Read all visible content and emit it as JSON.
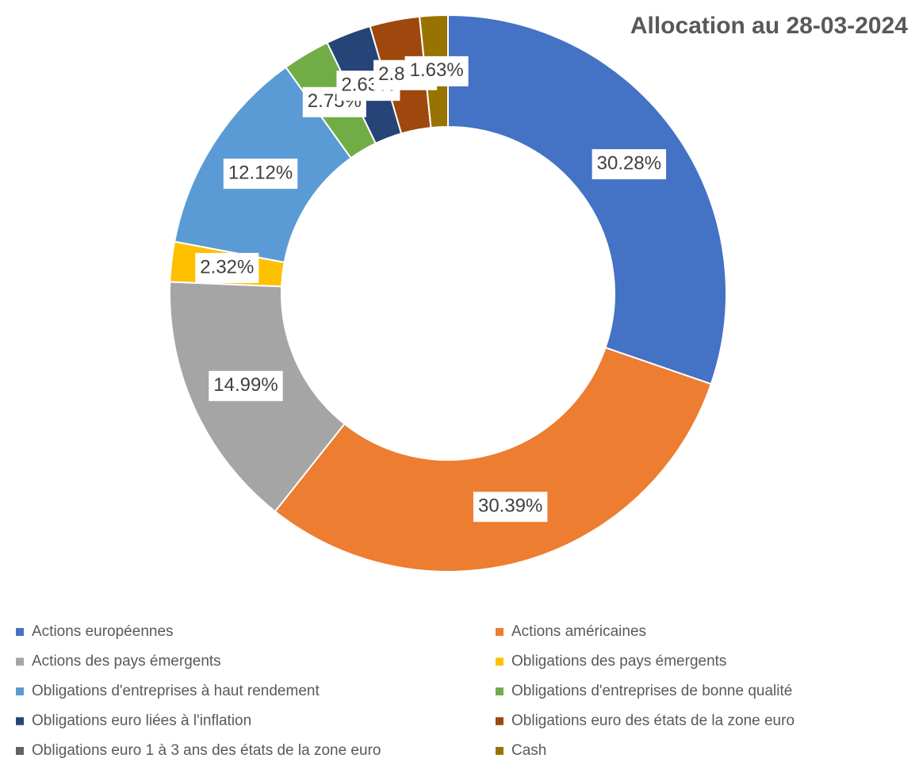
{
  "chart_data": {
    "type": "donut",
    "title": "Allocation au 28-03-2024",
    "categories": [
      "Actions européennes",
      "Actions américaines",
      "Actions des pays émergents",
      "Obligations des pays émergents",
      "Obligations d'entreprises à haut rendement",
      "Obligations d'entreprises de bonne qualité",
      "Obligations euro liées à l'inflation",
      "Obligations euro des états de la zone euro",
      "Obligations euro 1 à 3 ans des états de la zone euro",
      "Cash"
    ],
    "values": [
      30.28,
      30.39,
      14.99,
      2.32,
      12.12,
      2.75,
      2.63,
      2.89,
      0,
      1.63
    ],
    "value_labels": [
      "30.28%",
      "30.39%",
      "14.99%",
      "2.32%",
      "12.12%",
      "2.75%",
      "2.63%",
      "2.89%",
      null,
      "1.63%"
    ],
    "colors": [
      "#4472c4",
      "#ed7d31",
      "#a5a5a5",
      "#ffc000",
      "#5b9bd5",
      "#70ad47",
      "#264478",
      "#9e480e",
      "#636363",
      "#997300"
    ],
    "legend": "bottom"
  }
}
